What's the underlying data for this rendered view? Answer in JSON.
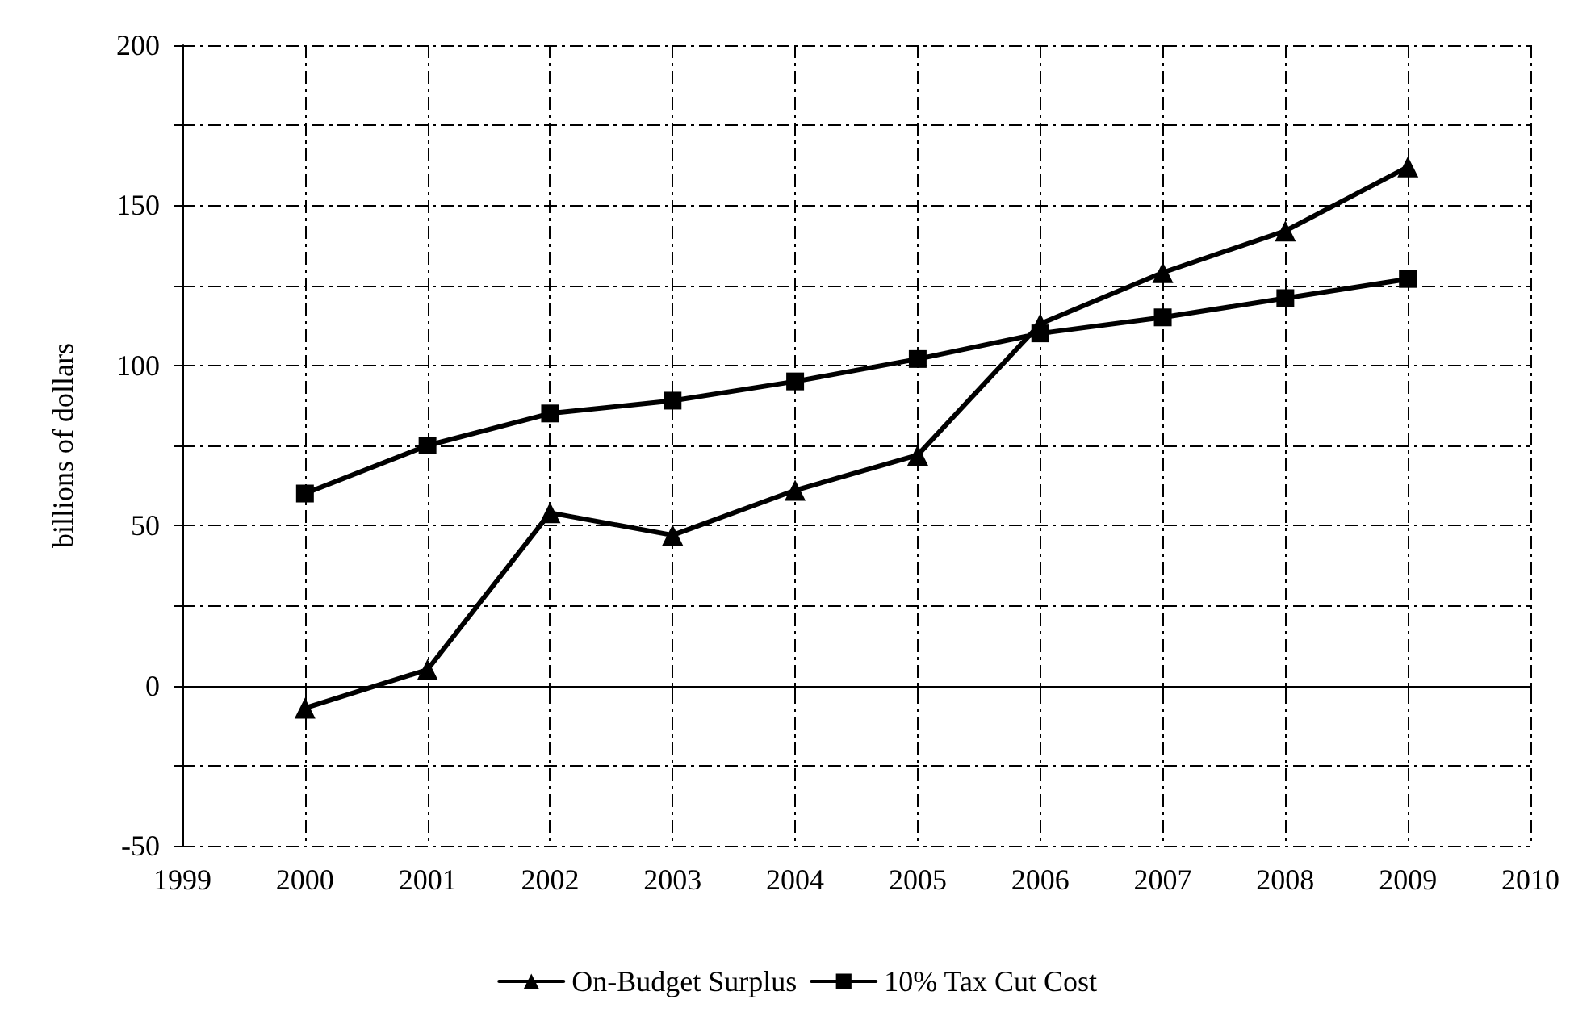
{
  "chart_data": {
    "type": "line",
    "ylabel": "billions of dollars",
    "x": [
      2000,
      2001,
      2002,
      2003,
      2004,
      2005,
      2006,
      2007,
      2008,
      2009
    ],
    "series": [
      {
        "name": "On-Budget Surplus",
        "color": "#000000",
        "marker": "triangle",
        "values": [
          -7,
          5,
          54,
          47,
          61,
          72,
          113,
          129,
          142,
          162
        ]
      },
      {
        "name": "10% Tax Cut Cost",
        "color": "#000000",
        "marker": "square",
        "values": [
          60,
          75,
          85,
          89,
          95,
          102,
          110,
          115,
          121,
          127
        ]
      }
    ],
    "xlim": [
      1999,
      2010
    ],
    "xticks": [
      1999,
      2000,
      2001,
      2002,
      2003,
      2004,
      2005,
      2006,
      2007,
      2008,
      2009,
      2010
    ],
    "ylim": [
      -50,
      200
    ],
    "yticks": [
      -50,
      {
        "value": -25,
        "label": null
      },
      0,
      {
        "value": 25,
        "label": null
      },
      50,
      {
        "value": 75,
        "label": null
      },
      100,
      {
        "value": 125,
        "label": null
      },
      150,
      {
        "value": 175,
        "label": null
      },
      200
    ],
    "grid": true,
    "legend": "bottom",
    "line_style": "solid"
  }
}
